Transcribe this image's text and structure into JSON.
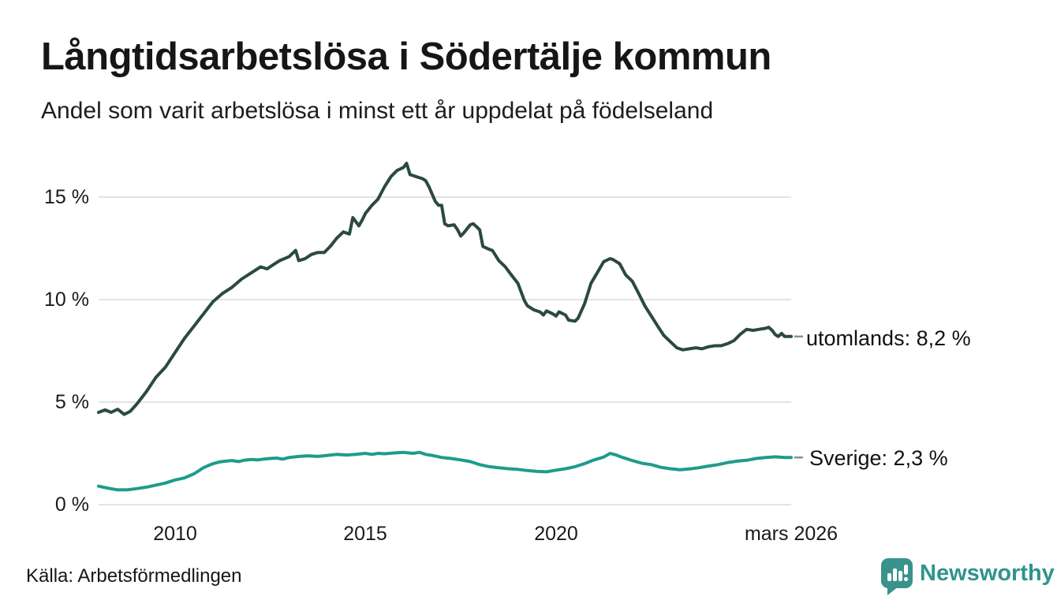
{
  "header": {
    "title": "Långtidsarbetslösa i Södertälje kommun",
    "subtitle": "Andel som varit arbetslösa i minst ett år uppdelat på födelseland"
  },
  "footer": {
    "source": "Källa: Arbetsförmedlingen",
    "brand": "Newsworthy"
  },
  "colors": {
    "foreign_line": "#2b4943",
    "sweden_line": "#1d9c8b",
    "grid": "#e3e3e3",
    "connector": "#8f8f8f",
    "brand_teal": "#2f948c",
    "text": "#161616",
    "background": "#ffffff"
  },
  "chart_data": {
    "type": "line",
    "title": "Långtidsarbetslösa i Södertälje kommun",
    "subtitle": "Andel som varit arbetslösa i minst ett år uppdelat på födelseland",
    "unit": "%",
    "grid": "horizontal gridlines only",
    "legend_position": "line-end labels at right",
    "x_axis": {
      "range": [
        2008.0,
        2026.17
      ],
      "ticks": [
        {
          "value": 2010,
          "label": "2010"
        },
        {
          "value": 2015,
          "label": "2015"
        },
        {
          "value": 2020,
          "label": "2020"
        },
        {
          "value": 2026.17,
          "label": "mars 2026"
        }
      ]
    },
    "y_axis": {
      "range": [
        0,
        17.3
      ],
      "ticks": [
        {
          "value": 0,
          "label": "0 %"
        },
        {
          "value": 5,
          "label": "5 %"
        },
        {
          "value": 10,
          "label": "10 %"
        },
        {
          "value": 15,
          "label": "15 %"
        }
      ]
    },
    "series": [
      {
        "name": "utomlands",
        "end_label": "utomlands: 8,2 %",
        "last_value_display": "8,2 %",
        "last_value": 8.2,
        "color": "#2b4943",
        "points": [
          [
            2008.0,
            4.5
          ],
          [
            2008.17,
            4.62
          ],
          [
            2008.33,
            4.5
          ],
          [
            2008.5,
            4.65
          ],
          [
            2008.67,
            4.4
          ],
          [
            2008.83,
            4.55
          ],
          [
            2009.0,
            4.9
          ],
          [
            2009.25,
            5.5
          ],
          [
            2009.5,
            6.2
          ],
          [
            2009.75,
            6.7
          ],
          [
            2010.0,
            7.4
          ],
          [
            2010.25,
            8.1
          ],
          [
            2010.5,
            8.7
          ],
          [
            2010.75,
            9.3
          ],
          [
            2011.0,
            9.9
          ],
          [
            2011.25,
            10.3
          ],
          [
            2011.5,
            10.6
          ],
          [
            2011.75,
            11.0
          ],
          [
            2012.0,
            11.3
          ],
          [
            2012.25,
            11.6
          ],
          [
            2012.42,
            11.5
          ],
          [
            2012.58,
            11.7
          ],
          [
            2012.75,
            11.9
          ],
          [
            2013.0,
            12.1
          ],
          [
            2013.17,
            12.4
          ],
          [
            2013.25,
            11.9
          ],
          [
            2013.42,
            12.0
          ],
          [
            2013.58,
            12.2
          ],
          [
            2013.75,
            12.3
          ],
          [
            2013.92,
            12.3
          ],
          [
            2014.08,
            12.6
          ],
          [
            2014.25,
            13.0
          ],
          [
            2014.42,
            13.3
          ],
          [
            2014.58,
            13.2
          ],
          [
            2014.67,
            14.0
          ],
          [
            2014.83,
            13.6
          ],
          [
            2014.92,
            13.9
          ],
          [
            2015.0,
            14.2
          ],
          [
            2015.17,
            14.6
          ],
          [
            2015.33,
            14.9
          ],
          [
            2015.5,
            15.5
          ],
          [
            2015.67,
            16.0
          ],
          [
            2015.83,
            16.3
          ],
          [
            2016.0,
            16.45
          ],
          [
            2016.08,
            16.65
          ],
          [
            2016.17,
            16.1
          ],
          [
            2016.33,
            16.0
          ],
          [
            2016.5,
            15.9
          ],
          [
            2016.58,
            15.8
          ],
          [
            2016.67,
            15.5
          ],
          [
            2016.83,
            14.8
          ],
          [
            2016.92,
            14.6
          ],
          [
            2017.0,
            14.6
          ],
          [
            2017.08,
            13.7
          ],
          [
            2017.17,
            13.6
          ],
          [
            2017.33,
            13.65
          ],
          [
            2017.42,
            13.4
          ],
          [
            2017.5,
            13.1
          ],
          [
            2017.58,
            13.25
          ],
          [
            2017.75,
            13.65
          ],
          [
            2017.83,
            13.7
          ],
          [
            2017.92,
            13.55
          ],
          [
            2018.0,
            13.4
          ],
          [
            2018.08,
            12.6
          ],
          [
            2018.25,
            12.45
          ],
          [
            2018.33,
            12.4
          ],
          [
            2018.5,
            11.9
          ],
          [
            2018.67,
            11.6
          ],
          [
            2018.83,
            11.2
          ],
          [
            2019.0,
            10.8
          ],
          [
            2019.17,
            9.95
          ],
          [
            2019.25,
            9.7
          ],
          [
            2019.42,
            9.5
          ],
          [
            2019.58,
            9.4
          ],
          [
            2019.67,
            9.25
          ],
          [
            2019.75,
            9.45
          ],
          [
            2019.92,
            9.3
          ],
          [
            2020.0,
            9.2
          ],
          [
            2020.08,
            9.4
          ],
          [
            2020.25,
            9.25
          ],
          [
            2020.33,
            9.0
          ],
          [
            2020.5,
            8.95
          ],
          [
            2020.58,
            9.1
          ],
          [
            2020.75,
            9.8
          ],
          [
            2020.92,
            10.8
          ],
          [
            2021.08,
            11.3
          ],
          [
            2021.25,
            11.85
          ],
          [
            2021.42,
            12.0
          ],
          [
            2021.5,
            11.95
          ],
          [
            2021.67,
            11.75
          ],
          [
            2021.83,
            11.2
          ],
          [
            2022.0,
            10.9
          ],
          [
            2022.17,
            10.3
          ],
          [
            2022.33,
            9.7
          ],
          [
            2022.5,
            9.2
          ],
          [
            2022.67,
            8.7
          ],
          [
            2022.83,
            8.25
          ],
          [
            2023.0,
            7.95
          ],
          [
            2023.17,
            7.65
          ],
          [
            2023.33,
            7.55
          ],
          [
            2023.5,
            7.6
          ],
          [
            2023.67,
            7.65
          ],
          [
            2023.83,
            7.6
          ],
          [
            2024.0,
            7.7
          ],
          [
            2024.17,
            7.75
          ],
          [
            2024.33,
            7.75
          ],
          [
            2024.5,
            7.85
          ],
          [
            2024.67,
            8.0
          ],
          [
            2024.83,
            8.3
          ],
          [
            2025.0,
            8.55
          ],
          [
            2025.17,
            8.5
          ],
          [
            2025.33,
            8.55
          ],
          [
            2025.5,
            8.6
          ],
          [
            2025.58,
            8.65
          ],
          [
            2025.67,
            8.5
          ],
          [
            2025.75,
            8.3
          ],
          [
            2025.83,
            8.2
          ],
          [
            2025.92,
            8.35
          ],
          [
            2026.0,
            8.2
          ],
          [
            2026.17,
            8.2
          ]
        ]
      },
      {
        "name": "Sverige",
        "end_label": "Sverige: 2,3 %",
        "last_value_display": "2,3 %",
        "last_value": 2.3,
        "color": "#1d9c8b",
        "points": [
          [
            2008.0,
            0.9
          ],
          [
            2008.25,
            0.8
          ],
          [
            2008.5,
            0.72
          ],
          [
            2008.75,
            0.72
          ],
          [
            2009.0,
            0.78
          ],
          [
            2009.25,
            0.85
          ],
          [
            2009.5,
            0.95
          ],
          [
            2009.75,
            1.05
          ],
          [
            2010.0,
            1.2
          ],
          [
            2010.25,
            1.3
          ],
          [
            2010.5,
            1.5
          ],
          [
            2010.75,
            1.8
          ],
          [
            2011.0,
            2.0
          ],
          [
            2011.17,
            2.08
          ],
          [
            2011.33,
            2.12
          ],
          [
            2011.5,
            2.15
          ],
          [
            2011.67,
            2.1
          ],
          [
            2011.83,
            2.17
          ],
          [
            2012.0,
            2.2
          ],
          [
            2012.17,
            2.18
          ],
          [
            2012.33,
            2.22
          ],
          [
            2012.5,
            2.25
          ],
          [
            2012.67,
            2.27
          ],
          [
            2012.83,
            2.22
          ],
          [
            2013.0,
            2.3
          ],
          [
            2013.25,
            2.35
          ],
          [
            2013.5,
            2.38
          ],
          [
            2013.75,
            2.35
          ],
          [
            2014.0,
            2.4
          ],
          [
            2014.25,
            2.45
          ],
          [
            2014.5,
            2.42
          ],
          [
            2014.75,
            2.45
          ],
          [
            2015.0,
            2.5
          ],
          [
            2015.17,
            2.45
          ],
          [
            2015.33,
            2.5
          ],
          [
            2015.5,
            2.48
          ],
          [
            2015.75,
            2.52
          ],
          [
            2016.0,
            2.55
          ],
          [
            2016.25,
            2.5
          ],
          [
            2016.42,
            2.55
          ],
          [
            2016.58,
            2.45
          ],
          [
            2016.75,
            2.4
          ],
          [
            2017.0,
            2.3
          ],
          [
            2017.25,
            2.25
          ],
          [
            2017.5,
            2.18
          ],
          [
            2017.75,
            2.1
          ],
          [
            2018.0,
            1.95
          ],
          [
            2018.25,
            1.85
          ],
          [
            2018.5,
            1.8
          ],
          [
            2018.75,
            1.75
          ],
          [
            2019.0,
            1.72
          ],
          [
            2019.25,
            1.66
          ],
          [
            2019.5,
            1.62
          ],
          [
            2019.75,
            1.6
          ],
          [
            2020.0,
            1.68
          ],
          [
            2020.25,
            1.75
          ],
          [
            2020.5,
            1.85
          ],
          [
            2020.75,
            2.0
          ],
          [
            2021.0,
            2.18
          ],
          [
            2021.25,
            2.32
          ],
          [
            2021.42,
            2.5
          ],
          [
            2021.58,
            2.42
          ],
          [
            2021.75,
            2.3
          ],
          [
            2022.0,
            2.15
          ],
          [
            2022.25,
            2.02
          ],
          [
            2022.5,
            1.95
          ],
          [
            2022.75,
            1.82
          ],
          [
            2023.0,
            1.75
          ],
          [
            2023.25,
            1.7
          ],
          [
            2023.5,
            1.74
          ],
          [
            2023.75,
            1.8
          ],
          [
            2024.0,
            1.88
          ],
          [
            2024.25,
            1.95
          ],
          [
            2024.5,
            2.05
          ],
          [
            2024.75,
            2.12
          ],
          [
            2025.0,
            2.16
          ],
          [
            2025.25,
            2.25
          ],
          [
            2025.5,
            2.3
          ],
          [
            2025.75,
            2.33
          ],
          [
            2026.0,
            2.3
          ],
          [
            2026.17,
            2.3
          ]
        ]
      }
    ]
  }
}
